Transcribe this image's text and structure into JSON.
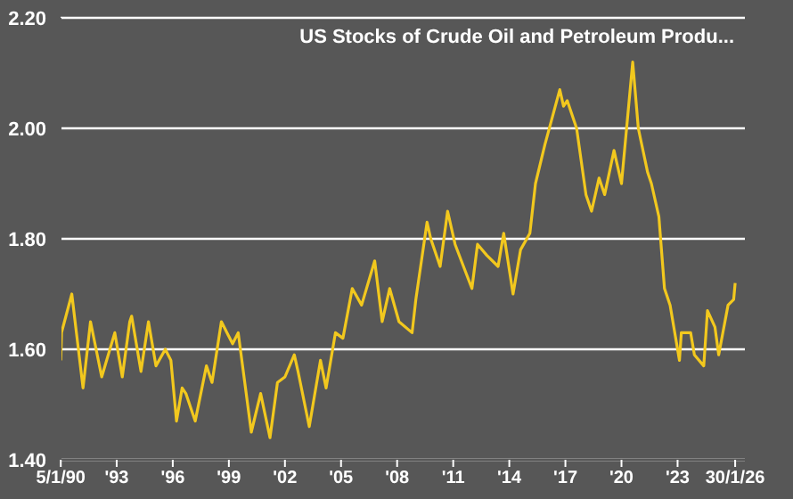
{
  "chart_data": {
    "type": "line",
    "title": "US Stocks of Crude Oil and Petroleum Produ...",
    "x": [
      1990.01,
      1990.05,
      1990.6,
      1991.2,
      1991.6,
      1992.2,
      1992.9,
      1993.3,
      1993.7,
      1993.8,
      1994.3,
      1994.7,
      1995.1,
      1995.6,
      1995.9,
      1996.2,
      1996.5,
      1996.7,
      1997.2,
      1997.8,
      1998.1,
      1998.6,
      1999.2,
      1999.5,
      2000.2,
      2000.7,
      2001.2,
      2001.6,
      2002.0,
      2002.5,
      2002.7,
      2003.3,
      2003.9,
      2004.2,
      2004.7,
      2005.1,
      2005.6,
      2006.1,
      2006.8,
      2007.2,
      2007.6,
      2008.1,
      2008.8,
      2009.0,
      2009.6,
      2009.8,
      2010.3,
      2010.7,
      2011.1,
      2012.0,
      2012.3,
      2012.8,
      2013.4,
      2013.7,
      2014.2,
      2014.6,
      2015.1,
      2015.4,
      2015.9,
      2016.7,
      2016.9,
      2017.1,
      2017.6,
      2018.1,
      2018.4,
      2018.8,
      2019.1,
      2019.6,
      2020.0,
      2020.6,
      2020.9,
      2021.4,
      2021.6,
      2022.0,
      2022.3,
      2022.6,
      2023.1,
      2023.2,
      2023.7,
      2023.9,
      2024.4,
      2024.6,
      2025.0,
      2025.2,
      2025.7,
      2026.0,
      2026.08
    ],
    "series": [
      {
        "color": "#f2c81e",
        "values": [
          1.58,
          1.63,
          1.7,
          1.53,
          1.65,
          1.55,
          1.63,
          1.55,
          1.65,
          1.66,
          1.56,
          1.65,
          1.57,
          1.6,
          1.58,
          1.47,
          1.53,
          1.52,
          1.47,
          1.57,
          1.54,
          1.65,
          1.61,
          1.63,
          1.45,
          1.52,
          1.44,
          1.54,
          1.55,
          1.59,
          1.56,
          1.46,
          1.58,
          1.53,
          1.63,
          1.62,
          1.71,
          1.68,
          1.76,
          1.65,
          1.71,
          1.65,
          1.63,
          1.69,
          1.83,
          1.8,
          1.75,
          1.85,
          1.79,
          1.71,
          1.79,
          1.77,
          1.75,
          1.81,
          1.7,
          1.78,
          1.81,
          1.9,
          1.97,
          2.07,
          2.04,
          2.05,
          2.0,
          1.88,
          1.85,
          1.91,
          1.88,
          1.96,
          1.9,
          2.12,
          2.0,
          1.92,
          1.9,
          1.84,
          1.71,
          1.68,
          1.58,
          1.63,
          1.63,
          1.59,
          1.57,
          1.67,
          1.64,
          1.59,
          1.68,
          1.69,
          1.72
        ]
      }
    ],
    "xlim": [
      1990,
      2026.6
    ],
    "xticks": [
      {
        "value": 1990.01,
        "label": "5/1/90"
      },
      {
        "value": 1993,
        "label": "'93"
      },
      {
        "value": 1996,
        "label": "'96"
      },
      {
        "value": 1999,
        "label": "'99"
      },
      {
        "value": 2002,
        "label": "'02"
      },
      {
        "value": 2005,
        "label": "'05"
      },
      {
        "value": 2008,
        "label": "'08"
      },
      {
        "value": 2011,
        "label": "'11"
      },
      {
        "value": 2014,
        "label": "'14"
      },
      {
        "value": 2017,
        "label": "'17"
      },
      {
        "value": 2020,
        "label": "'20"
      },
      {
        "value": 2023,
        "label": "'23"
      },
      {
        "value": 2026.08,
        "label": "30/1/26"
      }
    ],
    "ylim": [
      1.4,
      2.2
    ],
    "yticks": [
      {
        "value": 1.4,
        "label": "1.40"
      },
      {
        "value": 1.6,
        "label": "1.60"
      },
      {
        "value": 1.8,
        "label": "1.80"
      },
      {
        "value": 2.0,
        "label": "2.00"
      },
      {
        "value": 2.2,
        "label": "2.20"
      }
    ],
    "grid": "y",
    "legend": false,
    "marker": "none",
    "line_style": "solid"
  }
}
